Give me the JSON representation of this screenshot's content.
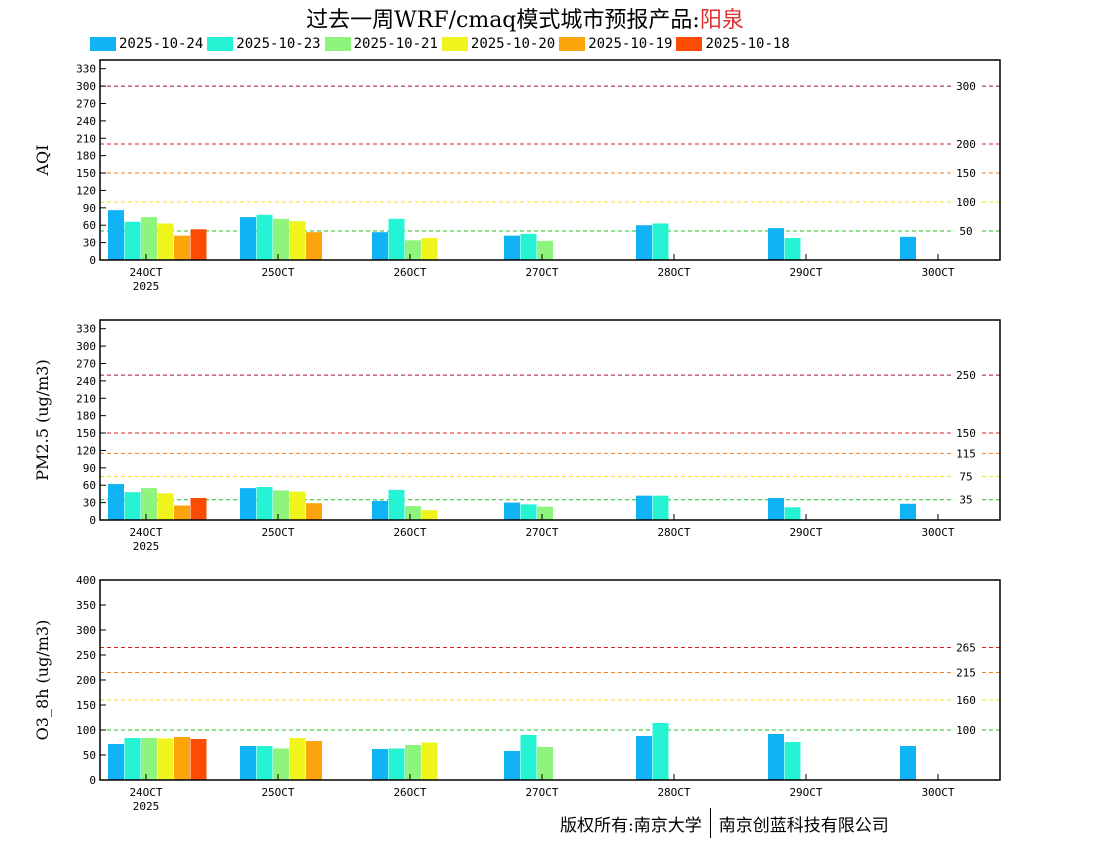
{
  "title": {
    "prefix": "过去一周WRF/cmaq模式城市预报产品:",
    "city": "阳泉"
  },
  "legend": [
    {
      "label": "2025-10-24",
      "color": "#10b4f4"
    },
    {
      "label": "2025-10-23",
      "color": "#25f4d4"
    },
    {
      "label": "2025-10-21",
      "color": "#8ef47c"
    },
    {
      "label": "2025-10-20",
      "color": "#eef41c"
    },
    {
      "label": "2025-10-19",
      "color": "#fca40c"
    },
    {
      "label": "2025-10-18",
      "color": "#fc4c04"
    }
  ],
  "footer": {
    "left": "版权所有:南京大学",
    "right": "南京创蓝科技有限公司"
  },
  "chart_data": [
    {
      "type": "bar",
      "ylabel": "AQI",
      "ylim": [
        0,
        345
      ],
      "yticks": [
        0,
        30,
        60,
        90,
        120,
        150,
        180,
        210,
        240,
        270,
        300,
        330
      ],
      "xticks": [
        "24OCT",
        "25OCT",
        "26OCT",
        "27OCT",
        "28OCT",
        "29OCT",
        "30OCT"
      ],
      "year_label": "2025",
      "thresholds": [
        {
          "value": 300,
          "label": "300",
          "color": "#a01040"
        },
        {
          "value": 200,
          "label": "200",
          "color": "#e02020"
        },
        {
          "value": 150,
          "label": "150",
          "color": "#f08020"
        },
        {
          "value": 100,
          "label": "100",
          "color": "#f0e020"
        },
        {
          "value": 50,
          "label": "50",
          "color": "#20c020"
        }
      ],
      "series": [
        {
          "name": "2025-10-24",
          "values": [
            86,
            74,
            48,
            42,
            60,
            55,
            40
          ]
        },
        {
          "name": "2025-10-23",
          "values": [
            66,
            78,
            71,
            45,
            63,
            38,
            null
          ]
        },
        {
          "name": "2025-10-21",
          "values": [
            74,
            71,
            34,
            33,
            null,
            null,
            null
          ]
        },
        {
          "name": "2025-10-20",
          "values": [
            63,
            67,
            38,
            null,
            null,
            null,
            null
          ]
        },
        {
          "name": "2025-10-19",
          "values": [
            42,
            48,
            null,
            null,
            null,
            null,
            null
          ]
        },
        {
          "name": "2025-10-18",
          "values": [
            53,
            null,
            null,
            null,
            null,
            null,
            null
          ]
        }
      ]
    },
    {
      "type": "bar",
      "ylabel": "PM2.5 (ug/m3)",
      "ylim": [
        0,
        345
      ],
      "yticks": [
        0,
        30,
        60,
        90,
        120,
        150,
        180,
        210,
        240,
        270,
        300,
        330
      ],
      "xticks": [
        "24OCT",
        "25OCT",
        "26OCT",
        "27OCT",
        "28OCT",
        "29OCT",
        "30OCT"
      ],
      "year_label": "2025",
      "thresholds": [
        {
          "value": 250,
          "label": "250",
          "color": "#a01040"
        },
        {
          "value": 150,
          "label": "150",
          "color": "#e02020"
        },
        {
          "value": 115,
          "label": "115",
          "color": "#f08020"
        },
        {
          "value": 75,
          "label": "75",
          "color": "#f0e020"
        },
        {
          "value": 35,
          "label": "35",
          "color": "#20c020"
        }
      ],
      "series": [
        {
          "name": "2025-10-24",
          "values": [
            62,
            55,
            33,
            30,
            42,
            38,
            28
          ]
        },
        {
          "name": "2025-10-23",
          "values": [
            48,
            57,
            52,
            27,
            42,
            22,
            null
          ]
        },
        {
          "name": "2025-10-21",
          "values": [
            55,
            51,
            24,
            23,
            null,
            null,
            null
          ]
        },
        {
          "name": "2025-10-20",
          "values": [
            46,
            49,
            17,
            null,
            null,
            null,
            null
          ]
        },
        {
          "name": "2025-10-19",
          "values": [
            25,
            29,
            null,
            null,
            null,
            null,
            null
          ]
        },
        {
          "name": "2025-10-18",
          "values": [
            38,
            null,
            null,
            null,
            null,
            null,
            null
          ]
        }
      ]
    },
    {
      "type": "bar",
      "ylabel": "O3_8h (ug/m3)",
      "ylim": [
        0,
        400
      ],
      "yticks": [
        0,
        50,
        100,
        150,
        200,
        250,
        300,
        350,
        400
      ],
      "xticks": [
        "24OCT",
        "25OCT",
        "26OCT",
        "27OCT",
        "28OCT",
        "29OCT",
        "30OCT"
      ],
      "year_label": "2025",
      "thresholds": [
        {
          "value": 265,
          "label": "265",
          "color": "#e02020"
        },
        {
          "value": 215,
          "label": "215",
          "color": "#f08020"
        },
        {
          "value": 160,
          "label": "160",
          "color": "#f0e020"
        },
        {
          "value": 100,
          "label": "100",
          "color": "#20c020"
        }
      ],
      "series": [
        {
          "name": "2025-10-24",
          "values": [
            72,
            68,
            62,
            58,
            88,
            92,
            68
          ]
        },
        {
          "name": "2025-10-23",
          "values": [
            84,
            68,
            63,
            90,
            114,
            76,
            null
          ]
        },
        {
          "name": "2025-10-21",
          "values": [
            84,
            63,
            70,
            66,
            null,
            null,
            null
          ]
        },
        {
          "name": "2025-10-20",
          "values": [
            83,
            84,
            75,
            null,
            null,
            null,
            null
          ]
        },
        {
          "name": "2025-10-19",
          "values": [
            86,
            78,
            null,
            null,
            null,
            null,
            null
          ]
        },
        {
          "name": "2025-10-18",
          "values": [
            82,
            null,
            null,
            null,
            null,
            null,
            null
          ]
        }
      ]
    }
  ]
}
